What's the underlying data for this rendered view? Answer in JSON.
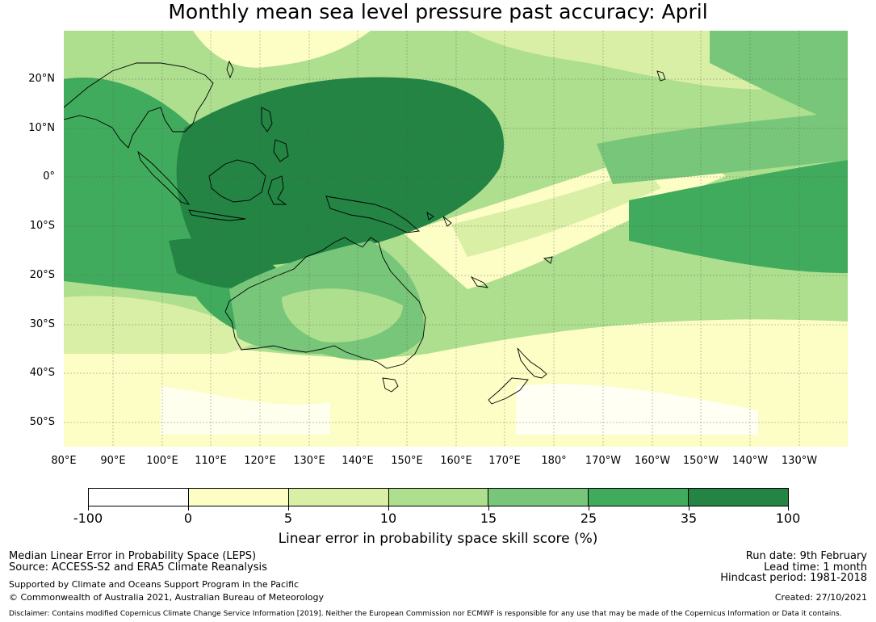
{
  "title": "Monthly mean sea level pressure past accuracy: April",
  "lat_labels": [
    "20°N",
    "10°N",
    "0°",
    "10°S",
    "20°S",
    "30°S",
    "40°S",
    "50°S"
  ],
  "lon_labels": [
    "80°E",
    "90°E",
    "100°E",
    "110°E",
    "120°E",
    "130°E",
    "140°E",
    "150°E",
    "160°E",
    "170°E",
    "180°",
    "170°W",
    "160°W",
    "150°W",
    "140°W",
    "130°W"
  ],
  "colorbar": {
    "ticks": [
      "-100",
      "0",
      "5",
      "10",
      "15",
      "25",
      "35",
      "100"
    ],
    "colors": [
      "#ffffff",
      "#fdfdc6",
      "#d9efa5",
      "#addf8e",
      "#78c679",
      "#41ab5d",
      "#238443"
    ],
    "label": "Linear error in probability space skill score (%)"
  },
  "footer": {
    "line1": "Median Linear Error in Probability Space (LEPS)",
    "line2": "Source: ACCESS-S2 and ERA5 Climate Reanalysis",
    "line3": "Supported by Climate and Oceans Support Program in the Pacific",
    "line4": "© Commonwealth of Australia 2021, Australian Bureau of Meteorology",
    "run_date": "Run date: 9th February",
    "lead_time": "Lead time: 1 month",
    "hindcast": "Hindcast period: 1981-2018",
    "created": "Created: 27/10/2021",
    "disclaimer": "Disclaimer: Contains modified Copernicus Climate Change Service Information [2019]. Neither the European Commission nor ECMWF is responsible for any use that may be made of the Copernicus Information or Data it contains."
  }
}
